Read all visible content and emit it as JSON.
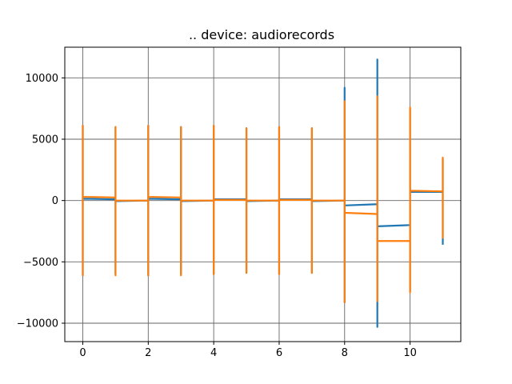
{
  "chart_data": {
    "type": "line",
    "title": ".. device: audiorecords",
    "xlabel": "",
    "ylabel": "",
    "xlim": [
      -0.55,
      11.55
    ],
    "ylim": [
      -11500,
      12500
    ],
    "grid": true,
    "x_ticks": [
      0,
      2,
      4,
      6,
      8,
      10
    ],
    "y_ticks": [
      -10000,
      -5000,
      0,
      5000,
      10000
    ],
    "colors": {
      "series1": "#1f77b4",
      "series2": "#ff7f0e",
      "grid": "#666666",
      "axes": "#000000"
    },
    "series": [
      {
        "color": "#1f77b4",
        "values": [
          [
            0,
            0
          ],
          [
            0,
            6100
          ],
          [
            0,
            -6100
          ],
          [
            0,
            150
          ],
          [
            1,
            100
          ],
          [
            1,
            6000
          ],
          [
            1,
            -6000
          ],
          [
            1,
            -50
          ],
          [
            2,
            0
          ],
          [
            2,
            6100
          ],
          [
            2,
            -6100
          ],
          [
            2,
            150
          ],
          [
            3,
            100
          ],
          [
            3,
            6000
          ],
          [
            3,
            -6000
          ],
          [
            3,
            -50
          ],
          [
            4,
            0
          ],
          [
            4,
            6100
          ],
          [
            4,
            -6000
          ],
          [
            4,
            100
          ],
          [
            5,
            100
          ],
          [
            5,
            5900
          ],
          [
            5,
            -5900
          ],
          [
            5,
            -50
          ],
          [
            6,
            0
          ],
          [
            6,
            6000
          ],
          [
            6,
            -6000
          ],
          [
            6,
            100
          ],
          [
            7,
            100
          ],
          [
            7,
            5900
          ],
          [
            7,
            -5900
          ],
          [
            7,
            -50
          ],
          [
            8,
            0
          ],
          [
            8,
            9200
          ],
          [
            8,
            -8300
          ],
          [
            8,
            -400
          ],
          [
            9,
            -300
          ],
          [
            9,
            11500
          ],
          [
            9,
            -10300
          ],
          [
            9,
            -2100
          ],
          [
            10,
            -2000
          ],
          [
            10,
            7500
          ],
          [
            10,
            -7400
          ],
          [
            10,
            700
          ],
          [
            11,
            700
          ],
          [
            11,
            3400
          ],
          [
            11,
            -3600
          ]
        ]
      },
      {
        "color": "#ff7f0e",
        "values": [
          [
            0,
            0
          ],
          [
            0,
            6100
          ],
          [
            0,
            -6100
          ],
          [
            0,
            300
          ],
          [
            1,
            250
          ],
          [
            1,
            6000
          ],
          [
            1,
            -6100
          ],
          [
            1,
            0
          ],
          [
            2,
            0
          ],
          [
            2,
            6100
          ],
          [
            2,
            -6100
          ],
          [
            2,
            300
          ],
          [
            3,
            250
          ],
          [
            3,
            6000
          ],
          [
            3,
            -6100
          ],
          [
            3,
            0
          ],
          [
            4,
            0
          ],
          [
            4,
            6100
          ],
          [
            4,
            -6000
          ],
          [
            4,
            50
          ],
          [
            5,
            50
          ],
          [
            5,
            5900
          ],
          [
            5,
            -5900
          ],
          [
            5,
            0
          ],
          [
            6,
            0
          ],
          [
            6,
            6000
          ],
          [
            6,
            -6000
          ],
          [
            6,
            50
          ],
          [
            7,
            50
          ],
          [
            7,
            5900
          ],
          [
            7,
            -5900
          ],
          [
            7,
            0
          ],
          [
            8,
            0
          ],
          [
            8,
            8100
          ],
          [
            8,
            -8300
          ],
          [
            8,
            -1000
          ],
          [
            9,
            -1100
          ],
          [
            9,
            8500
          ],
          [
            9,
            -8200
          ],
          [
            9,
            -3300
          ],
          [
            10,
            -3300
          ],
          [
            10,
            7600
          ],
          [
            10,
            -7500
          ],
          [
            10,
            800
          ],
          [
            11,
            750
          ],
          [
            11,
            3500
          ],
          [
            11,
            -3100
          ]
        ]
      }
    ]
  }
}
